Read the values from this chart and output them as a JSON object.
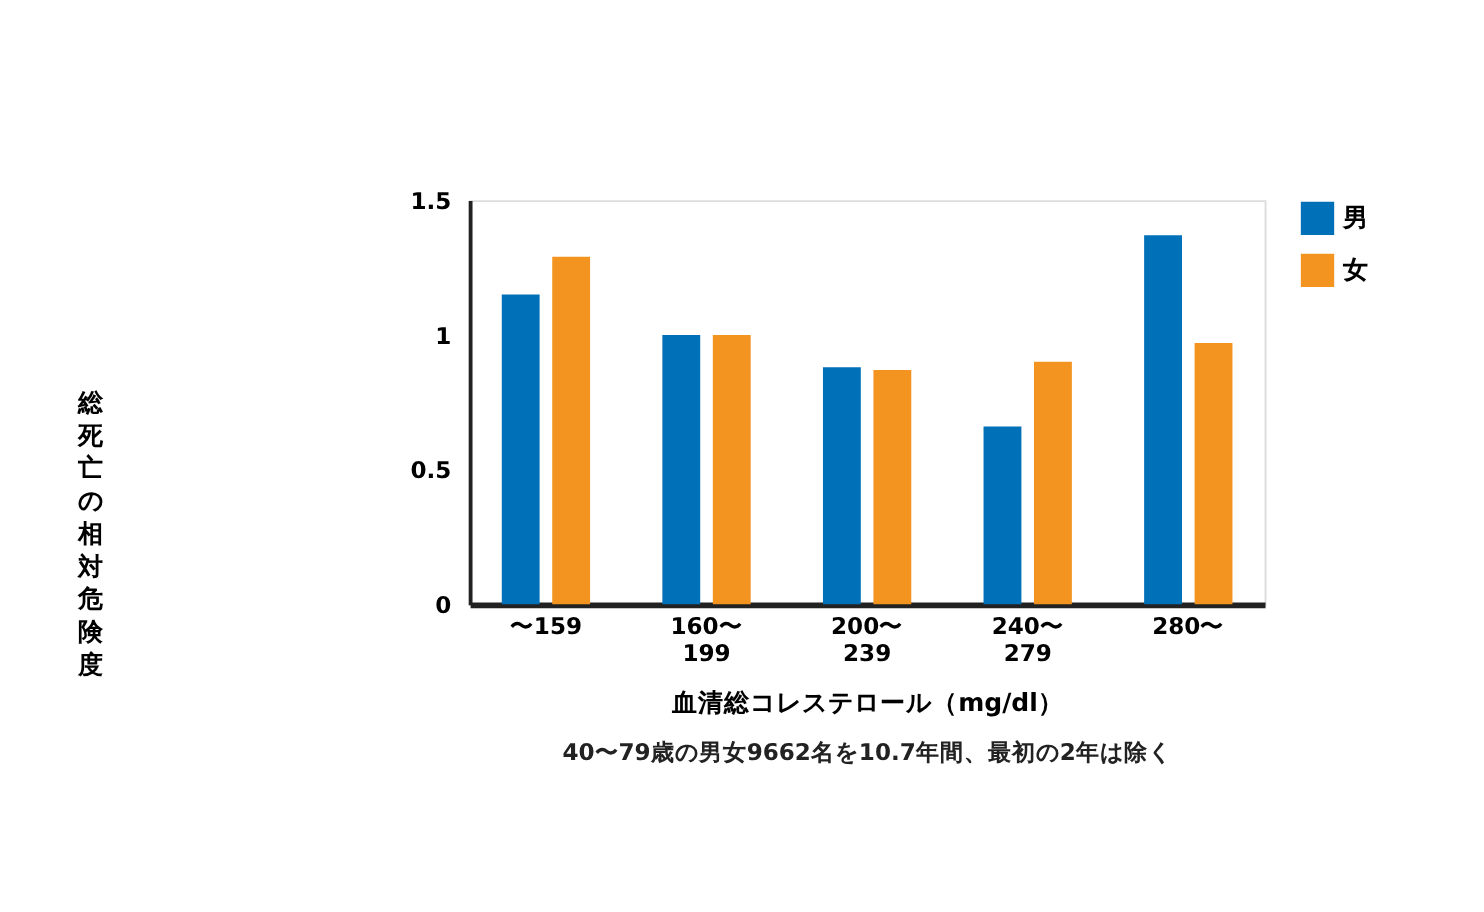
{
  "chart_data": {
    "type": "bar",
    "xlabel": "血清総コレステロール（mg/dl）",
    "ylabel": "総死亡の相対危険度",
    "categories": [
      "〜159",
      "160〜\n199",
      "200〜\n239",
      "240〜\n279",
      "280〜"
    ],
    "series": [
      {
        "name": "男",
        "color": "#0070b8",
        "values": [
          1.15,
          1.0,
          0.88,
          0.66,
          1.37
        ]
      },
      {
        "name": "女",
        "color": "#f39420",
        "values": [
          1.29,
          1.0,
          0.87,
          0.9,
          0.97
        ]
      }
    ],
    "ylim": [
      0,
      1.5
    ],
    "yticks": [
      0,
      0.5,
      1,
      1.5
    ],
    "grid": false,
    "legend": "top right",
    "annotations": [
      "40〜79歳の男女9662名を10.7年間、最初の2年は除く"
    ]
  }
}
